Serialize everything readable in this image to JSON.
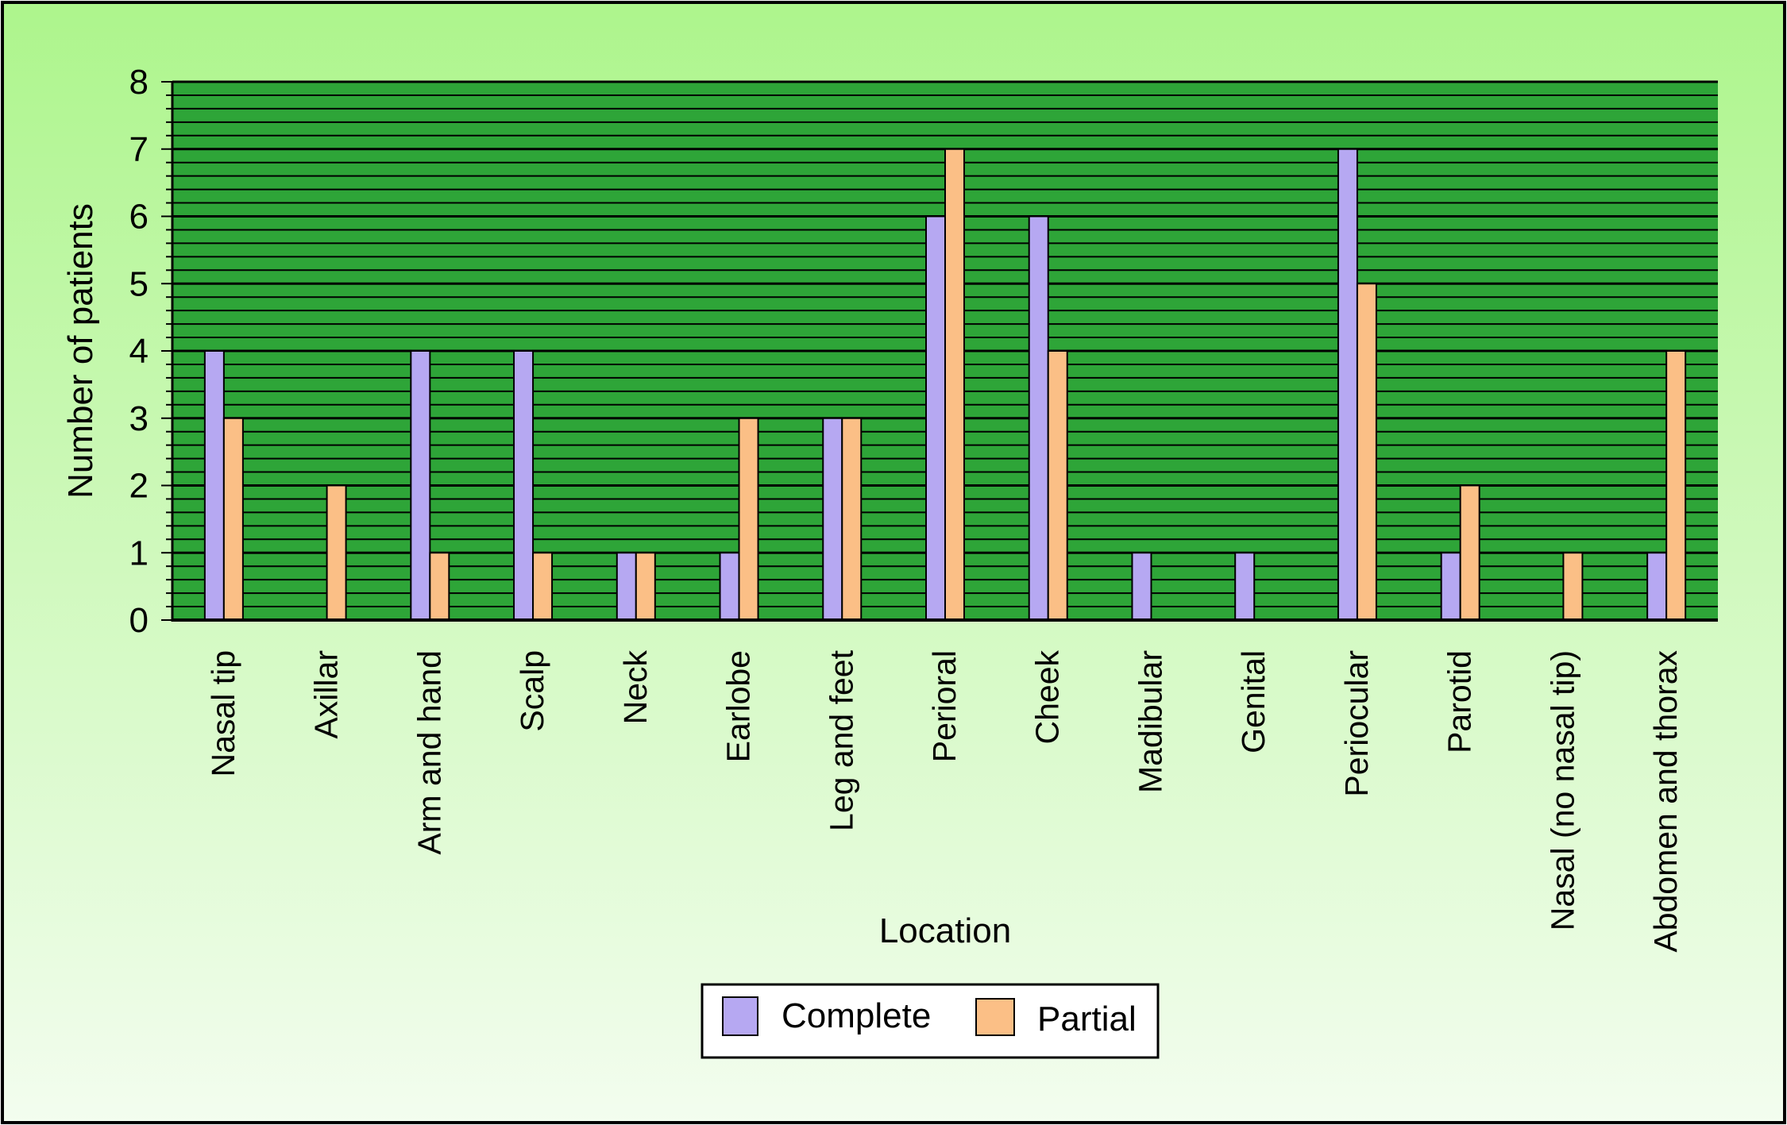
{
  "chart_data": {
    "type": "bar",
    "title": "",
    "xlabel": "Location",
    "ylabel": "Number of patients",
    "ylim": [
      0,
      8
    ],
    "y_ticks": [
      0,
      1,
      2,
      3,
      4,
      5,
      6,
      7,
      8
    ],
    "minor_gridlines_per_unit": 5,
    "grid": true,
    "legend_position": "bottom-center",
    "categories": [
      "Nasal tip",
      "Axillar",
      "Arm and hand",
      "Scalp",
      "Neck",
      "Earlobe",
      "Leg and feet",
      "Perioral",
      "Cheek",
      "Madibular",
      "Genital",
      "Periocular",
      "Parotid",
      "Nasal (no nasal tip)",
      "Abdomen and thorax"
    ],
    "series": [
      {
        "name": "Complete",
        "color": "#b6a8f2",
        "values": [
          4,
          0,
          4,
          4,
          1,
          1,
          3,
          6,
          6,
          1,
          1,
          7,
          1,
          0,
          1
        ]
      },
      {
        "name": "Partial",
        "color": "#fbbf86",
        "values": [
          3,
          2,
          1,
          1,
          1,
          3,
          3,
          7,
          4,
          0,
          0,
          5,
          2,
          1,
          4
        ]
      }
    ]
  },
  "colors": {
    "background_top": "#adf58c",
    "background_bottom": "#f3fdef",
    "plot_area": "#2ea538",
    "gridline": "#000000",
    "frame": "#000000"
  }
}
